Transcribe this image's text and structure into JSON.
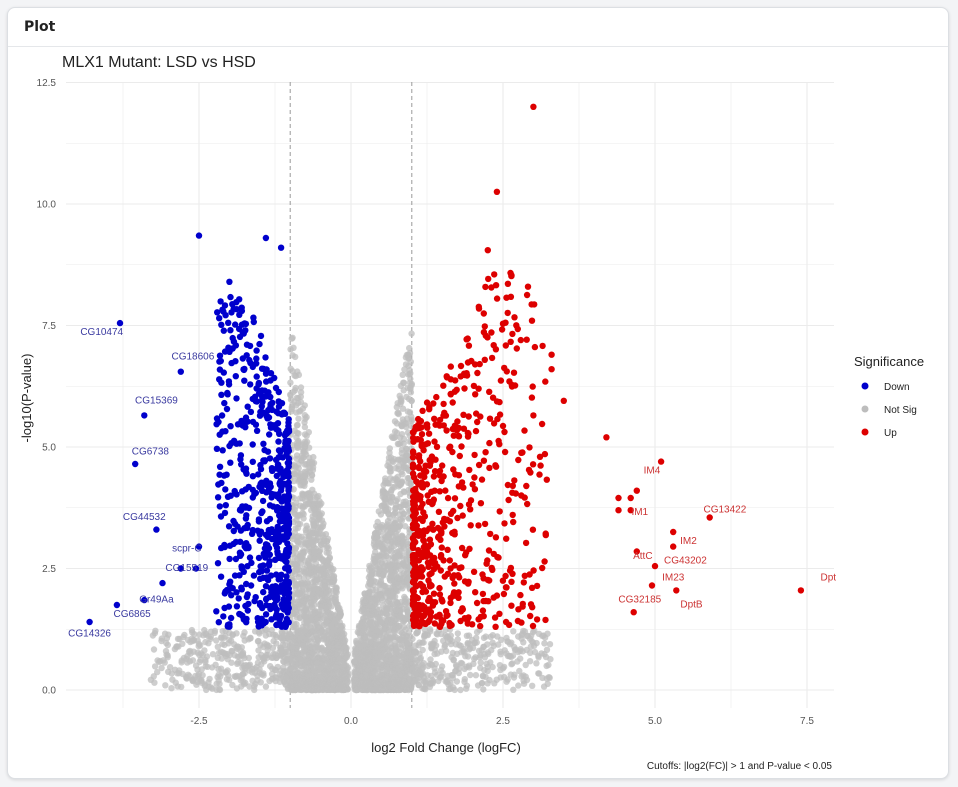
{
  "card": {
    "title": "Plot"
  },
  "colors": {
    "down": "#0000cc",
    "notsig": "#bdbdbd",
    "up": "#dd0000",
    "grid": "#ebebeb",
    "label_down": "#3a3aa0",
    "label_up": "#cc3333"
  },
  "chart_data": {
    "type": "scatter",
    "title": "MLX1 Mutant: LSD vs HSD",
    "xlabel": "log2 Fold Change (logFC)",
    "ylabel": "-log10(P-value)",
    "caption": "Cutoffs: |log2(FC)| > 1 and P-value < 0.05",
    "xlim": [
      -4.9,
      8.0
    ],
    "ylim": [
      -0.6,
      12.5
    ],
    "x_ticks": [
      -2.5,
      0.0,
      2.5,
      5.0,
      7.5
    ],
    "x_tick_labels": [
      "-2.5",
      "0.0",
      "2.5",
      "5.0",
      "7.5"
    ],
    "y_ticks": [
      0.0,
      2.5,
      5.0,
      7.5,
      10.0,
      12.5
    ],
    "y_tick_labels": [
      "0.0",
      "2.5",
      "5.0",
      "7.5",
      "10.0",
      "12.5"
    ],
    "vlines": [
      -1,
      1
    ],
    "grid": true,
    "legend": {
      "title": "Significance",
      "position": "right",
      "entries": [
        {
          "label": "Down",
          "color": "#0000cc"
        },
        {
          "label": "Not Sig",
          "color": "#bdbdbd"
        },
        {
          "label": "Up",
          "color": "#dd0000"
        }
      ]
    },
    "highlight_points": {
      "down": [
        [
          -3.8,
          7.55
        ],
        [
          -2.8,
          6.55
        ],
        [
          -3.4,
          5.65
        ],
        [
          -3.55,
          4.65
        ],
        [
          -3.2,
          3.3
        ],
        [
          -2.5,
          2.95
        ],
        [
          -2.55,
          2.5
        ],
        [
          -2.8,
          2.5
        ],
        [
          -3.1,
          2.2
        ],
        [
          -3.4,
          1.85
        ],
        [
          -3.85,
          1.75
        ],
        [
          -4.3,
          1.4
        ],
        [
          -2.5,
          9.35
        ],
        [
          -1.4,
          9.3
        ],
        [
          -1.15,
          9.1
        ],
        [
          -2.0,
          8.4
        ]
      ],
      "up": [
        [
          3.0,
          12.0
        ],
        [
          2.4,
          10.25
        ],
        [
          2.25,
          9.05
        ],
        [
          7.4,
          2.05
        ],
        [
          5.9,
          3.55
        ],
        [
          5.3,
          3.25
        ],
        [
          5.3,
          2.95
        ],
        [
          5.0,
          2.55
        ],
        [
          4.7,
          2.85
        ],
        [
          5.35,
          2.05
        ],
        [
          4.95,
          2.15
        ],
        [
          4.65,
          1.6
        ],
        [
          5.1,
          4.7
        ],
        [
          4.7,
          4.1
        ],
        [
          4.2,
          5.2
        ],
        [
          3.5,
          5.95
        ],
        [
          3.3,
          6.9
        ],
        [
          3.3,
          6.6
        ],
        [
          4.6,
          3.7
        ],
        [
          4.4,
          3.7
        ],
        [
          4.4,
          3.95
        ],
        [
          4.6,
          3.95
        ]
      ]
    },
    "labels": [
      {
        "text": "CG10474",
        "x": -4.1,
        "y": 7.3,
        "group": "down"
      },
      {
        "text": "CG18606",
        "x": -2.6,
        "y": 6.8,
        "group": "down"
      },
      {
        "text": "CG15369",
        "x": -3.2,
        "y": 5.9,
        "group": "down"
      },
      {
        "text": "CG6738",
        "x": -3.3,
        "y": 4.85,
        "group": "down"
      },
      {
        "text": "CG44532",
        "x": -3.4,
        "y": 3.5,
        "group": "down"
      },
      {
        "text": "scpr-C",
        "x": -2.7,
        "y": 2.85,
        "group": "down"
      },
      {
        "text": "CG15519",
        "x": -2.7,
        "y": 2.45,
        "group": "down"
      },
      {
        "text": "Gr49Aa",
        "x": -3.2,
        "y": 1.8,
        "group": "down"
      },
      {
        "text": "CG6865",
        "x": -3.6,
        "y": 1.5,
        "group": "down"
      },
      {
        "text": "CG14326",
        "x": -4.3,
        "y": 1.1,
        "group": "down"
      },
      {
        "text": "IM4",
        "x": 4.95,
        "y": 4.45,
        "group": "up"
      },
      {
        "text": "IM1",
        "x": 4.75,
        "y": 3.6,
        "group": "up"
      },
      {
        "text": "CG13422",
        "x": 6.15,
        "y": 3.65,
        "group": "up"
      },
      {
        "text": "IM2",
        "x": 5.55,
        "y": 3.0,
        "group": "up"
      },
      {
        "text": "AttC",
        "x": 4.8,
        "y": 2.7,
        "group": "up"
      },
      {
        "text": "CG43202",
        "x": 5.5,
        "y": 2.6,
        "group": "up"
      },
      {
        "text": "Dpt",
        "x": 7.85,
        "y": 2.25,
        "group": "up"
      },
      {
        "text": "IM23",
        "x": 5.3,
        "y": 2.25,
        "group": "up"
      },
      {
        "text": "CG32185",
        "x": 4.75,
        "y": 1.8,
        "group": "up"
      },
      {
        "text": "DptB",
        "x": 5.6,
        "y": 1.7,
        "group": "up"
      }
    ],
    "point_counts": {
      "down": 620,
      "up": 620,
      "notsig": 4000
    }
  }
}
